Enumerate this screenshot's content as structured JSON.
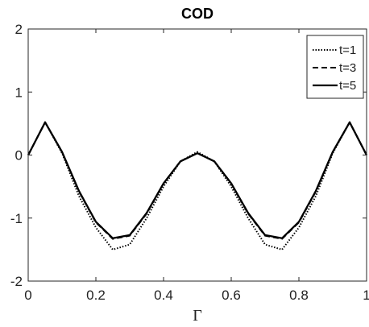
{
  "chart_data": {
    "type": "line",
    "title": "COD",
    "xlabel": "Γ",
    "ylabel": "",
    "xlim": [
      0,
      1
    ],
    "ylim": [
      -2,
      2
    ],
    "xticks": [
      "0",
      "0.2",
      "0.4",
      "0.6",
      "0.8",
      "1"
    ],
    "yticks": [
      "-2",
      "-1",
      "0",
      "1",
      "2"
    ],
    "grid": false,
    "legend_position": "top-right",
    "x": [
      0,
      0.05,
      0.1,
      0.15,
      0.2,
      0.25,
      0.3,
      0.35,
      0.4,
      0.45,
      0.5,
      0.55,
      0.6,
      0.65,
      0.7,
      0.75,
      0.8,
      0.85,
      0.9,
      0.95,
      1.0
    ],
    "series": [
      {
        "name": "t=1",
        "style": "dotted",
        "values": [
          0,
          0.52,
          0.03,
          -0.65,
          -1.15,
          -1.5,
          -1.42,
          -1.0,
          -0.5,
          -0.1,
          0.05,
          -0.1,
          -0.5,
          -1.0,
          -1.42,
          -1.5,
          -1.15,
          -0.65,
          0.03,
          0.52,
          0
        ]
      },
      {
        "name": "t=3",
        "style": "dashed",
        "values": [
          0,
          0.52,
          0.05,
          -0.58,
          -1.07,
          -1.33,
          -1.28,
          -0.93,
          -0.45,
          -0.1,
          0.03,
          -0.1,
          -0.45,
          -0.93,
          -1.28,
          -1.33,
          -1.07,
          -0.58,
          0.05,
          0.52,
          0
        ]
      },
      {
        "name": "t=5",
        "style": "solid",
        "values": [
          0,
          0.52,
          0.05,
          -0.57,
          -1.06,
          -1.32,
          -1.27,
          -0.92,
          -0.45,
          -0.1,
          0.03,
          -0.1,
          -0.45,
          -0.92,
          -1.27,
          -1.32,
          -1.06,
          -0.57,
          0.05,
          0.52,
          0
        ]
      }
    ]
  }
}
